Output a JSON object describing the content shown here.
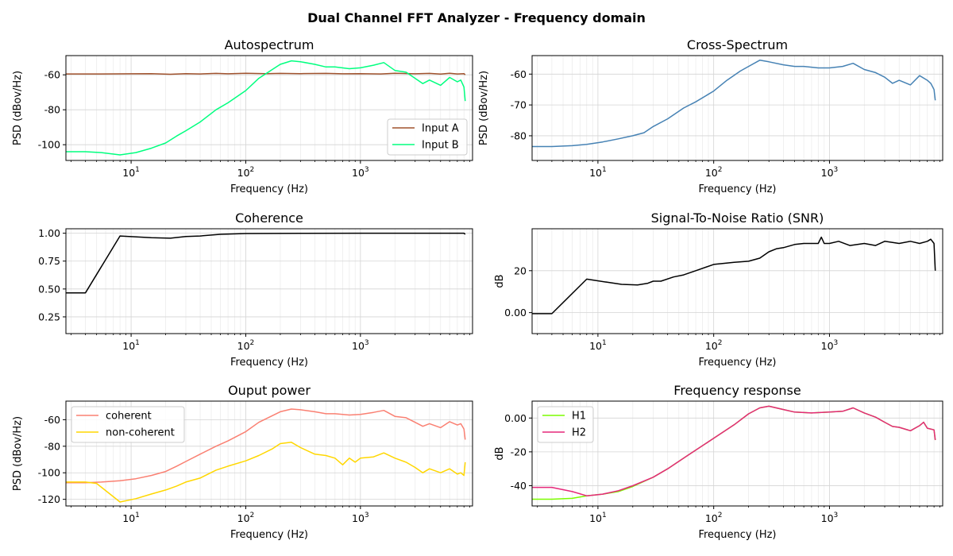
{
  "title": "Dual Channel FFT Analyzer - Frequency domain",
  "chart_data": [
    {
      "type": "line",
      "title": "Autospectrum",
      "xlabel": "Frequency (Hz)",
      "ylabel": "PSD (dBov/Hz)",
      "xscale": "log",
      "xlim": [
        2.7,
        9500
      ],
      "ylim": [
        -109,
        -49
      ],
      "yticks": [
        -100,
        -80,
        -60
      ],
      "grid": true,
      "legend": "lower-right",
      "series": [
        {
          "name": "Input A",
          "color": "#a0522d",
          "x": [
            2.7,
            5,
            10,
            15,
            22,
            30,
            40,
            55,
            70,
            100,
            150,
            200,
            300,
            500,
            700,
            1000,
            1500,
            2000,
            3000,
            4000,
            5000,
            6000,
            7000,
            8000,
            8200
          ],
          "y": [
            -59.5,
            -59.5,
            -59.4,
            -59.3,
            -59.7,
            -59.3,
            -59.5,
            -59.2,
            -59.4,
            -59.1,
            -59.3,
            -59.2,
            -59.3,
            -59.2,
            -59.4,
            -59.3,
            -59.5,
            -59.1,
            -59.4,
            -59.2,
            -59.6,
            -59.1,
            -59.5,
            -59.3,
            -60
          ]
        },
        {
          "name": "Input B",
          "color": "#00ff7f",
          "x": [
            2.7,
            4,
            5.5,
            8,
            11,
            15,
            20,
            25,
            30,
            40,
            55,
            70,
            100,
            130,
            170,
            200,
            250,
            300,
            400,
            500,
            600,
            800,
            1000,
            1300,
            1600,
            2000,
            2500,
            3000,
            3500,
            4000,
            5000,
            6000,
            7000,
            7500,
            8000,
            8200
          ],
          "y": [
            -104,
            -104,
            -104.5,
            -105.8,
            -104.5,
            -102,
            -99,
            -95,
            -92,
            -87,
            -80,
            -76,
            -69,
            -62,
            -57,
            -54,
            -52,
            -52.5,
            -54,
            -55.5,
            -55.5,
            -56.5,
            -56,
            -54.5,
            -53,
            -57.5,
            -58.5,
            -62,
            -65,
            -63,
            -66,
            -61.5,
            -64,
            -63,
            -67,
            -75
          ]
        }
      ]
    },
    {
      "type": "line",
      "title": "Cross-Spectrum",
      "xlabel": "Frequency (Hz)",
      "ylabel": "PSD (dBov/Hz)",
      "xscale": "log",
      "xlim": [
        2.7,
        9500
      ],
      "ylim": [
        -88,
        -54
      ],
      "yticks": [
        -80,
        -70,
        -60
      ],
      "grid": true,
      "series": [
        {
          "name": "",
          "color": "#4682b4",
          "x": [
            2.7,
            4,
            6,
            8,
            11,
            15,
            20,
            25,
            30,
            40,
            55,
            70,
            100,
            130,
            170,
            200,
            250,
            300,
            400,
            500,
            600,
            800,
            1000,
            1300,
            1600,
            2000,
            2500,
            3000,
            3500,
            4000,
            5000,
            6000,
            7000,
            7500,
            8000,
            8200
          ],
          "y": [
            -83.5,
            -83.5,
            -83.2,
            -82.8,
            -82,
            -81,
            -80,
            -79,
            -77,
            -74.5,
            -71,
            -69,
            -65.5,
            -62,
            -59,
            -57.5,
            -55.5,
            -56,
            -57,
            -57.5,
            -57.5,
            -58,
            -58,
            -57.5,
            -56.5,
            -58.5,
            -59.5,
            -61,
            -63,
            -62,
            -63.5,
            -60.5,
            -62,
            -63,
            -65,
            -68.5
          ]
        }
      ]
    },
    {
      "type": "line",
      "title": "Coherence",
      "xlabel": "Frequency (Hz)",
      "ylabel": "",
      "xscale": "log",
      "xlim": [
        2.7,
        9500
      ],
      "ylim": [
        0.1,
        1.04
      ],
      "yticks": [
        0.25,
        0.5,
        0.75,
        1.0
      ],
      "grid": true,
      "series": [
        {
          "name": "",
          "color": "#000000",
          "x": [
            2.7,
            4,
            8,
            15,
            22,
            30,
            40,
            60,
            100,
            300,
            1000,
            3000,
            8000,
            8200
          ],
          "y": [
            0.465,
            0.465,
            0.975,
            0.96,
            0.955,
            0.97,
            0.975,
            0.99,
            0.997,
            0.999,
            1.0,
            1.0,
            1.0,
            0.99
          ]
        }
      ]
    },
    {
      "type": "line",
      "title": "Signal-To-Noise Ratio (SNR)",
      "xlabel": "Frequency (Hz)",
      "ylabel": "dB",
      "xscale": "log",
      "xlim": [
        2.7,
        9500
      ],
      "ylim": [
        -10,
        40
      ],
      "yticks": [
        0,
        20
      ],
      "grid": true,
      "series": [
        {
          "name": "",
          "color": "#000000",
          "x": [
            2.7,
            4,
            8,
            12,
            16,
            22,
            27,
            30,
            35,
            45,
            55,
            70,
            100,
            150,
            200,
            250,
            300,
            350,
            400,
            500,
            600,
            700,
            800,
            850,
            900,
            1000,
            1200,
            1500,
            2000,
            2500,
            3000,
            4000,
            5000,
            6000,
            7000,
            7500,
            8000,
            8200
          ],
          "y": [
            -0.5,
            -0.5,
            16,
            14.5,
            13.5,
            13.2,
            14,
            15,
            15,
            17,
            18,
            20,
            23,
            24,
            24.5,
            26,
            29,
            30.5,
            31,
            32.5,
            33,
            33,
            33,
            36,
            33,
            33,
            34,
            32,
            33,
            32,
            34,
            33,
            34,
            33,
            34,
            35,
            33,
            20
          ]
        }
      ]
    },
    {
      "type": "line",
      "title": "Ouput power",
      "xlabel": "Frequency (Hz)",
      "ylabel": "PSD (dBov/Hz)",
      "xscale": "log",
      "xlim": [
        2.7,
        9500
      ],
      "ylim": [
        -125,
        -46
      ],
      "yticks": [
        -120,
        -100,
        -80,
        -60
      ],
      "grid": true,
      "legend": "top-left",
      "series": [
        {
          "name": "coherent",
          "color": "#fa8072",
          "x": [
            2.7,
            4,
            5.5,
            8,
            11,
            15,
            20,
            25,
            30,
            40,
            55,
            70,
            100,
            130,
            170,
            200,
            250,
            300,
            400,
            500,
            600,
            800,
            1000,
            1300,
            1600,
            2000,
            2500,
            3000,
            3500,
            4000,
            5000,
            6000,
            7000,
            7500,
            8000,
            8200
          ],
          "y": [
            -107.5,
            -107.5,
            -107,
            -106,
            -104.5,
            -102,
            -99,
            -95,
            -91.5,
            -86,
            -80,
            -76,
            -69,
            -62,
            -57,
            -54,
            -52,
            -52.5,
            -54,
            -55.5,
            -55.5,
            -56.5,
            -56,
            -54.5,
            -53,
            -57.5,
            -58.5,
            -62,
            -65,
            -63,
            -66,
            -61.5,
            -64,
            -63,
            -67,
            -75
          ]
        },
        {
          "name": "non-coherent",
          "color": "#ffd700",
          "x": [
            2.7,
            4,
            5,
            8,
            11,
            15,
            20,
            25,
            30,
            40,
            55,
            70,
            100,
            130,
            170,
            200,
            250,
            300,
            400,
            500,
            600,
            700,
            800,
            900,
            1000,
            1300,
            1600,
            2000,
            2500,
            3000,
            3500,
            4000,
            5000,
            6000,
            7000,
            7500,
            8000,
            8200
          ],
          "y": [
            -107,
            -107,
            -108,
            -122,
            -119.5,
            -116,
            -113,
            -110,
            -107,
            -104,
            -98,
            -95,
            -91,
            -87,
            -82,
            -78,
            -77,
            -81,
            -86,
            -87,
            -89,
            -94,
            -89,
            -92,
            -89,
            -88,
            -85,
            -89,
            -92,
            -96,
            -100,
            -97,
            -100,
            -97,
            -101,
            -100,
            -102,
            -92
          ]
        }
      ]
    },
    {
      "type": "line",
      "title": "Frequency response",
      "xlabel": "Frequency (Hz)",
      "ylabel": "dB",
      "xscale": "log",
      "xlim": [
        2.7,
        9500
      ],
      "ylim": [
        -52,
        10
      ],
      "yticks": [
        -40,
        -20,
        0
      ],
      "grid": true,
      "legend": "top-left",
      "series": [
        {
          "name": "H1",
          "color": "#7cfc00",
          "x": [
            2.7,
            4,
            6,
            8,
            11,
            15,
            20,
            30,
            40,
            60,
            100,
            150,
            200,
            250,
            300,
            400,
            500,
            700,
            1000,
            1300,
            1600,
            2000,
            2500,
            3000,
            3500,
            4000,
            5000,
            6000,
            6500,
            7000,
            8000,
            8200
          ],
          "y": [
            -48,
            -48,
            -47.5,
            -46,
            -45,
            -43.5,
            -40.5,
            -35,
            -30,
            -22,
            -12,
            -4,
            2.5,
            6,
            7,
            5,
            3.5,
            3,
            3.5,
            4,
            6,
            3,
            0.5,
            -2.5,
            -5,
            -5.5,
            -7.5,
            -4.5,
            -2.5,
            -6,
            -7,
            -13
          ]
        },
        {
          "name": "H2",
          "color": "#e6287a",
          "x": [
            2.7,
            4,
            6,
            8,
            11,
            15,
            20,
            30,
            40,
            60,
            100,
            150,
            200,
            250,
            300,
            400,
            500,
            700,
            1000,
            1300,
            1600,
            2000,
            2500,
            3000,
            3500,
            4000,
            5000,
            6000,
            6500,
            7000,
            8000,
            8200
          ],
          "y": [
            -41,
            -41,
            -43.5,
            -46,
            -45,
            -43,
            -40,
            -35,
            -30,
            -22,
            -12,
            -4,
            2.5,
            6,
            7,
            5,
            3.5,
            3,
            3.5,
            4,
            6,
            3,
            0.5,
            -2.5,
            -5,
            -5.5,
            -7.5,
            -4.5,
            -2.5,
            -6,
            -7,
            -13
          ]
        }
      ]
    }
  ]
}
